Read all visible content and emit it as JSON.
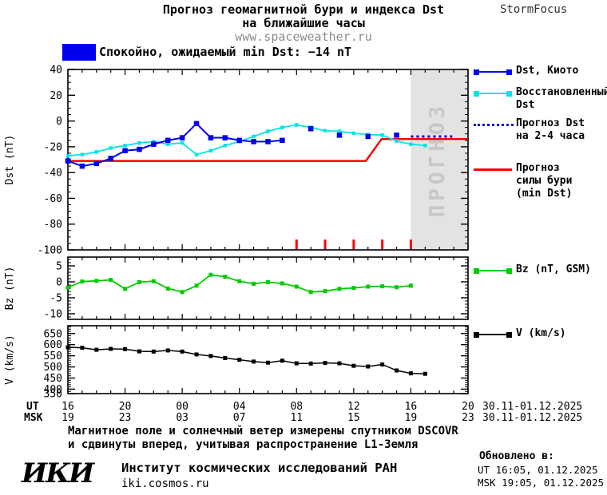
{
  "header": {
    "title_line1": "Прогноз геомагнитной бури и индекса Dst",
    "title_line2": "на ближайшие часы",
    "website": "www.spaceweather.ru",
    "brand": "StormFocus"
  },
  "status": {
    "label": "Спокойно, ожидаемый min Dst: −14 nT",
    "swatch_color": "#0000ee"
  },
  "legend": {
    "items": [
      {
        "lines": [
          "Dst, Киото"
        ],
        "color": "#0000ee"
      },
      {
        "lines": [
          "Восстановленный",
          "Dst"
        ],
        "color": "#00e6e6"
      },
      {
        "lines": [
          "Прогноз Dst",
          "на 2-4 часа"
        ],
        "color": "#0000cc",
        "style": "dotted"
      },
      {
        "lines": [
          "Прогноз",
          "силы бури",
          "(min Dst)"
        ],
        "color": "#ff0000",
        "style": "plain"
      },
      {
        "lines": [
          "Bz (nT, GSM)"
        ],
        "color": "#00cc00"
      },
      {
        "lines": [
          "V (km/s)"
        ],
        "color": "#000000"
      }
    ]
  },
  "xaxis": {
    "hours_span": 28,
    "tick_step_hours": 4,
    "ut_label": "UT",
    "msk_label": "MSK",
    "ut_ticks": [
      "16",
      "20",
      "00",
      "04",
      "08",
      "12",
      "16",
      "20"
    ],
    "msk_ticks": [
      "19",
      "23",
      "03",
      "07",
      "11",
      "15",
      "19",
      "23"
    ],
    "ut_date": "30.11-01.12.2025",
    "msk_date": "30.11-01.12.2025"
  },
  "footer": {
    "note_line1": "Магнитное поле и солнечный ветер измерены спутником DSCOVR",
    "note_line2": "и сдвинуты вперед, учитывая распространение L1-Земля",
    "logo": "ИКИ",
    "institute": "Институт космических исследований РАН",
    "institute_site": "iki.cosmos.ru",
    "updated_label": "Обновлено в:",
    "updated_ut": "UT  16:05, 01.12.2025",
    "updated_msk": "MSK 19:05, 01.12.2025"
  },
  "chart_data": [
    {
      "type": "line",
      "ylabel": "Dst (nT)",
      "ylim": [
        -100,
        40
      ],
      "yticks": [
        40,
        20,
        0,
        -20,
        -40,
        -60,
        -80,
        -100
      ],
      "yminor": 5,
      "forecast_region": {
        "start_hour": 24,
        "end_hour": 28,
        "label": "ПРОГНОЗ"
      },
      "event_marks_hours": [
        16,
        18,
        20,
        22,
        24
      ],
      "series": [
        {
          "name": "Прогноз силы бури (min Dst)",
          "color": "#ff0000",
          "width": 2.4,
          "marker": 0,
          "points": [
            [
              0,
              -31
            ],
            [
              20.85,
              -31
            ],
            [
              21.95,
              -14
            ],
            [
              28,
              -14
            ]
          ]
        },
        {
          "name": "Восстановленный Dst",
          "color": "#00e6e6",
          "width": 1.8,
          "marker": 4.5,
          "start_hour": 0,
          "values": [
            -27,
            -26,
            -24,
            -21,
            -19,
            -17,
            -16,
            -18,
            -17,
            -26,
            -23,
            -19,
            -16,
            -12,
            -8,
            -5,
            -3,
            -5,
            -7.5,
            -8,
            -9.5,
            -10.5,
            -11,
            -15.5,
            -18,
            -19
          ]
        },
        {
          "name": "Dst, Киото",
          "color": "#0000ee",
          "width": 2,
          "marker": 6.5,
          "start_hour": 0,
          "values": [
            -31,
            -35,
            -33,
            -29,
            -23,
            -22,
            -18,
            -15,
            -13,
            -2,
            -13,
            -13,
            -15,
            -16,
            -16,
            -15
          ]
        },
        {
          "name": "Dst, Киото (предварительные точки)",
          "color": "#0000ee",
          "width": 0,
          "line": false,
          "marker": 6.5,
          "points": [
            [
              17,
              -6
            ],
            [
              19,
              -11
            ],
            [
              21,
              -12
            ],
            [
              23,
              -11
            ]
          ]
        },
        {
          "name": "Прогноз Dst на 2-4 часа",
          "color": "#0000cc",
          "width": 3,
          "marker": 0,
          "dash": "3,4",
          "points": [
            [
              24,
              -12
            ],
            [
              26.9,
              -12
            ]
          ]
        }
      ]
    },
    {
      "type": "line",
      "ylabel": "Bz (nT)",
      "ylim": [
        -11.75,
        7.75
      ],
      "yticks": [
        5,
        0,
        -5,
        -10
      ],
      "yminor": 1,
      "series": [
        {
          "name": "Bz (nT, GSM)",
          "color": "#00cc00",
          "width": 1.8,
          "marker": 5,
          "start_hour": 0,
          "values": [
            -1.8,
            0.1,
            0.3,
            0.6,
            -2.2,
            -0.1,
            0.2,
            -2.1,
            -3.2,
            -1.2,
            2.2,
            1.6,
            0.2,
            -0.6,
            -0.1,
            -0.5,
            -1.5,
            -3.2,
            -2.9,
            -2.2,
            -1.9,
            -1.5,
            -1.4,
            -1.7,
            -1.2
          ]
        }
      ]
    },
    {
      "type": "line",
      "ylabel": "V (km/s)",
      "ylim": [
        380,
        685
      ],
      "yticks": [
        650,
        600,
        550,
        500,
        450,
        400,
        350
      ],
      "yminor": 10,
      "series": [
        {
          "name": "V (km/s)",
          "color": "#000000",
          "width": 1.5,
          "marker": 5,
          "start_hour": 0,
          "values": [
            588,
            586,
            577,
            581,
            580,
            570,
            569,
            574,
            569,
            556,
            549,
            540,
            532,
            524,
            519,
            528,
            516,
            515,
            518,
            516,
            505,
            502,
            511,
            484,
            471,
            469
          ]
        }
      ]
    }
  ]
}
